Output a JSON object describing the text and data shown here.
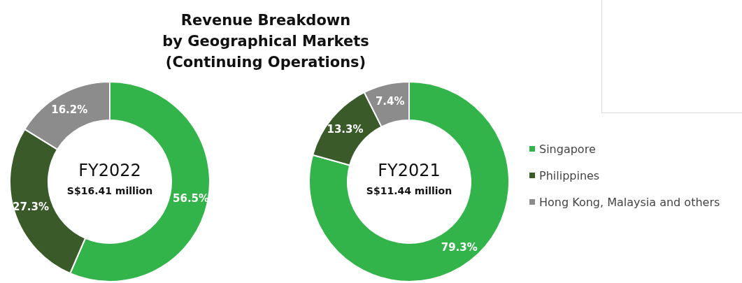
{
  "chart_data": {
    "type": "donut",
    "title": "Revenue Breakdown\nby Geographical Markets\n(Continuing Operations)",
    "annotations": [
      "FY2022",
      "S$16.41 million",
      "FY2021",
      "S$11.44 million"
    ],
    "categories": [
      "Singapore",
      "Philippines",
      "Hong Kong, Malaysia and others"
    ],
    "legend": "right",
    "series": [
      {
        "values": [
          56.5,
          27.3,
          16.2
        ],
        "value_labels": [
          "56.5%",
          "27.3%",
          "16.2%"
        ],
        "colors": [
          "#33b44a",
          "#3b5a2a",
          "#8c8c8c"
        ]
      },
      {
        "values": [
          79.3,
          13.3,
          7.4
        ],
        "value_labels": [
          "79.3%",
          "13.3%",
          "7.4%"
        ],
        "colors": [
          "#33b44a",
          "#3b5a2a",
          "#8c8c8c"
        ]
      }
    ]
  }
}
